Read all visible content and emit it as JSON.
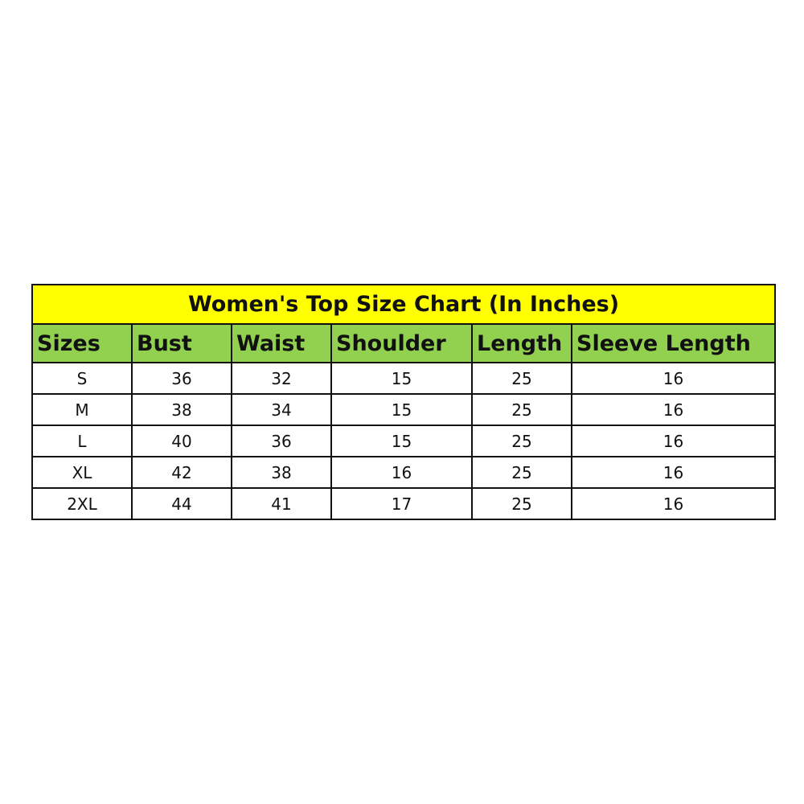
{
  "title": "Women's Top Size Chart (In Inches)",
  "colors": {
    "title_bg": "#ffff00",
    "header_bg": "#92d050",
    "border": "#111111"
  },
  "columns": [
    "Sizes",
    "Bust",
    "Waist",
    "Shoulder",
    "Length",
    "Sleeve Length"
  ],
  "rows": [
    [
      "S",
      "36",
      "32",
      "15",
      "25",
      "16"
    ],
    [
      "M",
      "38",
      "34",
      "15",
      "25",
      "16"
    ],
    [
      "L",
      "40",
      "36",
      "15",
      "25",
      "16"
    ],
    [
      "XL",
      "42",
      "38",
      "16",
      "25",
      "16"
    ],
    [
      "2XL",
      "44",
      "41",
      "17",
      "25",
      "16"
    ]
  ]
}
